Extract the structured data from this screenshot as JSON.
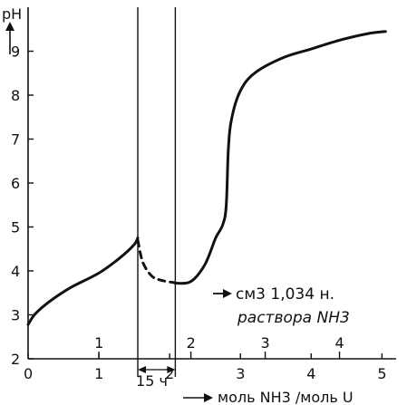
{
  "chart_data": {
    "type": "line",
    "title": "",
    "ylabel": "pH",
    "xlabel": "моль NH3 /моль U",
    "xlim": [
      0,
      5.2
    ],
    "ylim": [
      2,
      10
    ],
    "grid": false,
    "bottom_axis": {
      "label": "моль NH3 /моль U",
      "ticks": [
        {
          "value": 0,
          "label": "0"
        },
        {
          "value": 1,
          "label": "1"
        },
        {
          "value": 2,
          "label": "2"
        },
        {
          "value": 3,
          "label": "3"
        },
        {
          "value": 4,
          "label": "4"
        },
        {
          "value": 5,
          "label": "5"
        }
      ]
    },
    "top_axis": {
      "label_line1": "см3 1,034 н.",
      "label_line2": "раствора NH3",
      "ticks": [
        {
          "value": 1.0,
          "label": "1"
        },
        {
          "value": 2.3,
          "label": "2"
        },
        {
          "value": 3.35,
          "label": "3"
        },
        {
          "value": 4.4,
          "label": "4"
        }
      ]
    },
    "y_ticks": [
      2,
      3,
      4,
      5,
      6,
      7,
      8,
      9
    ],
    "vertical_lines": [
      1.55,
      2.08
    ],
    "gap_annotation": "15 ч",
    "series": [
      {
        "style": "solid",
        "points": [
          [
            0.0,
            2.78
          ],
          [
            0.1,
            3.02
          ],
          [
            0.3,
            3.3
          ],
          [
            0.6,
            3.62
          ],
          [
            1.0,
            3.95
          ],
          [
            1.3,
            4.3
          ],
          [
            1.5,
            4.6
          ],
          [
            1.55,
            4.75
          ]
        ]
      },
      {
        "style": "dashed",
        "points": [
          [
            1.55,
            4.7
          ],
          [
            1.62,
            4.2
          ],
          [
            1.75,
            3.88
          ],
          [
            1.9,
            3.78
          ],
          [
            2.08,
            3.73
          ]
        ]
      },
      {
        "style": "solid",
        "points": [
          [
            2.08,
            3.72
          ],
          [
            2.3,
            3.76
          ],
          [
            2.5,
            4.15
          ],
          [
            2.65,
            4.75
          ],
          [
            2.75,
            5.05
          ],
          [
            2.8,
            5.5
          ],
          [
            2.83,
            6.8
          ],
          [
            2.88,
            7.5
          ],
          [
            3.0,
            8.1
          ],
          [
            3.2,
            8.5
          ],
          [
            3.6,
            8.85
          ],
          [
            4.0,
            9.05
          ],
          [
            4.4,
            9.25
          ],
          [
            4.8,
            9.4
          ],
          [
            5.05,
            9.45
          ]
        ]
      }
    ]
  }
}
